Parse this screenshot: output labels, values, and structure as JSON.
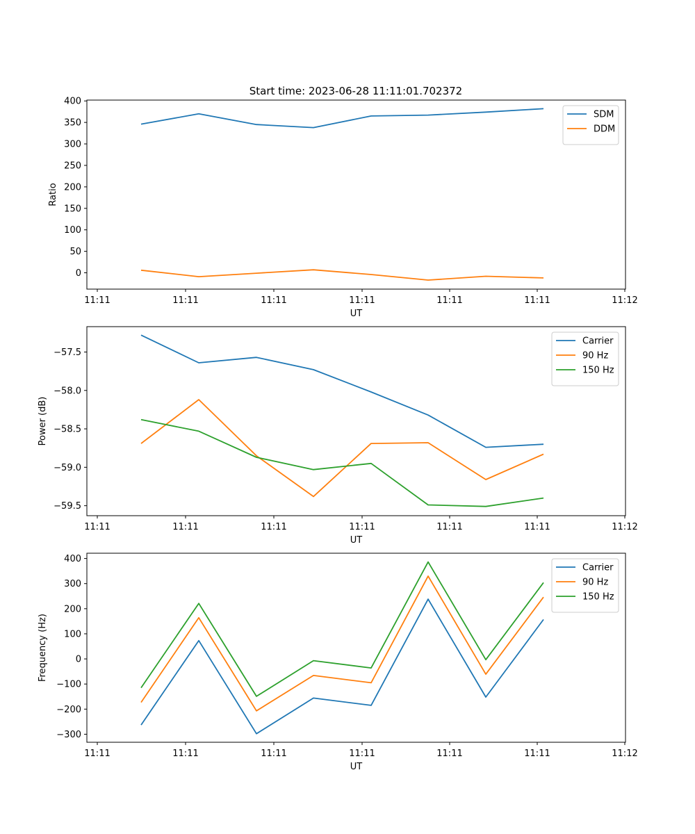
{
  "figure": {
    "suptitle": "Start time: 2023-06-28 11:11:01.702372"
  },
  "chart_data": [
    {
      "type": "line",
      "title": "",
      "xlabel": "UT",
      "ylabel": "Ratio",
      "x_tick_labels": [
        "11:11",
        "11:11",
        "11:11",
        "11:11",
        "11:11",
        "11:11",
        "11:12"
      ],
      "y_ticks": [
        0,
        50,
        100,
        150,
        200,
        250,
        300,
        350,
        400
      ],
      "ylim": [
        -38,
        402
      ],
      "grid": false,
      "legend": "top-right",
      "series": [
        {
          "name": "SDM",
          "color": "#1f77b4",
          "values": [
            346,
            370,
            345,
            338,
            365,
            367,
            374,
            382
          ]
        },
        {
          "name": "DDM",
          "color": "#ff7f0e",
          "values": [
            6,
            -9,
            -1,
            7,
            -4,
            -17,
            -8,
            -12
          ]
        }
      ]
    },
    {
      "type": "line",
      "title": "",
      "xlabel": "UT",
      "ylabel": "Power (dB)",
      "x_tick_labels": [
        "11:11",
        "11:11",
        "11:11",
        "11:11",
        "11:11",
        "11:11",
        "11:12"
      ],
      "y_ticks": [
        -57.5,
        -58.0,
        -58.5,
        -59.0,
        -59.5
      ],
      "ylim": [
        -59.63,
        -57.17
      ],
      "grid": false,
      "legend": "top-right",
      "series": [
        {
          "name": "Carrier",
          "color": "#1f77b4",
          "values": [
            -57.28,
            -57.64,
            -57.57,
            -57.73,
            -58.02,
            -58.32,
            -58.74,
            -58.7
          ]
        },
        {
          "name": "90 Hz",
          "color": "#ff7f0e",
          "values": [
            -58.69,
            -58.12,
            -58.85,
            -59.38,
            -58.69,
            -58.68,
            -59.16,
            -58.83
          ]
        },
        {
          "name": "150 Hz",
          "color": "#2ca02c",
          "values": [
            -58.38,
            -58.53,
            -58.87,
            -59.03,
            -58.95,
            -59.49,
            -59.51,
            -59.4
          ]
        }
      ]
    },
    {
      "type": "line",
      "title": "",
      "xlabel": "UT",
      "ylabel": "Frequency (Hz)",
      "x_tick_labels": [
        "11:11",
        "11:11",
        "11:11",
        "11:11",
        "11:11",
        "11:11",
        "11:12"
      ],
      "y_ticks": [
        -300,
        -200,
        -100,
        0,
        100,
        200,
        300,
        400
      ],
      "ylim": [
        -332,
        421
      ],
      "grid": false,
      "legend": "top-right",
      "series": [
        {
          "name": "Carrier",
          "color": "#1f77b4",
          "values": [
            -263,
            73,
            -298,
            -156,
            -185,
            238,
            -152,
            157
          ]
        },
        {
          "name": "90 Hz",
          "color": "#ff7f0e",
          "values": [
            -173,
            164,
            -207,
            -66,
            -95,
            330,
            -61,
            246
          ]
        },
        {
          "name": "150 Hz",
          "color": "#2ca02c",
          "values": [
            -115,
            221,
            -149,
            -7,
            -36,
            386,
            -3,
            304
          ]
        }
      ]
    }
  ]
}
